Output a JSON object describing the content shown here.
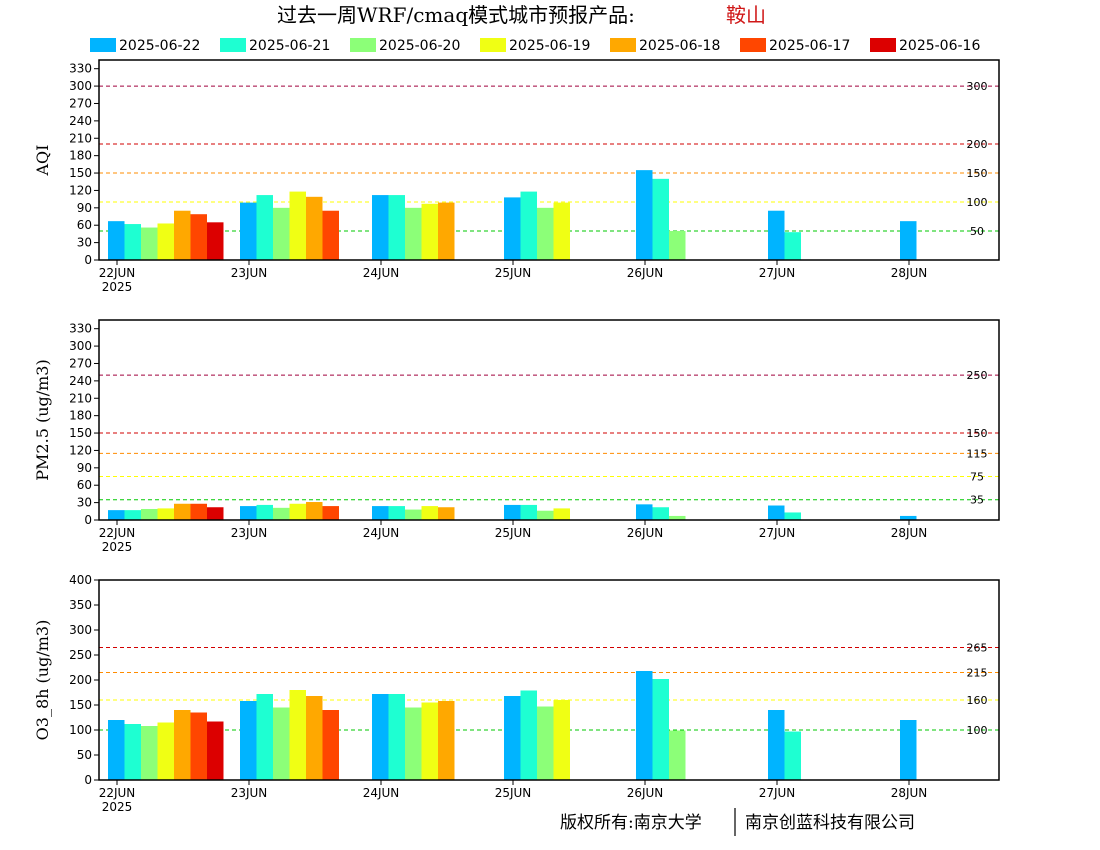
{
  "title": {
    "main": "过去一周WRF/cmaq模式城市预报产品:",
    "city": "鞍山",
    "city_color": "#d01818"
  },
  "legend": [
    {
      "label": "2025-06-22",
      "color": "#00b4ff"
    },
    {
      "label": "2025-06-21",
      "color": "#1effd2"
    },
    {
      "label": "2025-06-20",
      "color": "#8cff78"
    },
    {
      "label": "2025-06-19",
      "color": "#f0ff14"
    },
    {
      "label": "2025-06-18",
      "color": "#ffa800"
    },
    {
      "label": "2025-06-17",
      "color": "#ff4600"
    },
    {
      "label": "2025-06-16",
      "color": "#dc0000"
    }
  ],
  "chart_data": [
    {
      "type": "bar",
      "ylabel": "AQI",
      "ylim": [
        0,
        345
      ],
      "yticks": [
        0,
        30,
        60,
        90,
        120,
        150,
        180,
        210,
        240,
        270,
        300,
        330
      ],
      "categories": [
        "22JUN",
        "23JUN",
        "24JUN",
        "25JUN",
        "26JUN",
        "27JUN",
        "28JUN"
      ],
      "first_category_sublabel": "2025",
      "reference_lines": [
        {
          "value": 300,
          "label": "300",
          "color": "#a0003c"
        },
        {
          "value": 200,
          "label": "200",
          "color": "#d20000"
        },
        {
          "value": 150,
          "label": "150",
          "color": "#ff8c00"
        },
        {
          "value": 100,
          "label": "100",
          "color": "#ffff00"
        },
        {
          "value": 50,
          "label": "50",
          "color": "#00c800"
        }
      ],
      "series": [
        {
          "name": "2025-06-22",
          "values": [
            67,
            99,
            112,
            108,
            155,
            85,
            67
          ]
        },
        {
          "name": "2025-06-21",
          "values": [
            62,
            112,
            112,
            118,
            140,
            48,
            null
          ]
        },
        {
          "name": "2025-06-20",
          "values": [
            56,
            90,
            90,
            90,
            50,
            null,
            null
          ]
        },
        {
          "name": "2025-06-19",
          "values": [
            63,
            118,
            97,
            99,
            null,
            null,
            null
          ]
        },
        {
          "name": "2025-06-18",
          "values": [
            85,
            109,
            99,
            null,
            null,
            null,
            null
          ]
        },
        {
          "name": "2025-06-17",
          "values": [
            79,
            85,
            null,
            null,
            null,
            null,
            null
          ]
        },
        {
          "name": "2025-06-16",
          "values": [
            65,
            null,
            null,
            null,
            null,
            null,
            null
          ]
        }
      ]
    },
    {
      "type": "bar",
      "ylabel": "PM2.5 (ug/m3)",
      "ylim": [
        0,
        345
      ],
      "yticks": [
        0,
        30,
        60,
        90,
        120,
        150,
        180,
        210,
        240,
        270,
        300,
        330
      ],
      "categories": [
        "22JUN",
        "23JUN",
        "24JUN",
        "25JUN",
        "26JUN",
        "27JUN",
        "28JUN"
      ],
      "first_category_sublabel": "2025",
      "reference_lines": [
        {
          "value": 250,
          "label": "250",
          "color": "#a0003c"
        },
        {
          "value": 150,
          "label": "150",
          "color": "#d20000"
        },
        {
          "value": 115,
          "label": "115",
          "color": "#ff8c00"
        },
        {
          "value": 75,
          "label": "75",
          "color": "#ffff00"
        },
        {
          "value": 35,
          "label": "35",
          "color": "#00c800"
        }
      ],
      "series": [
        {
          "name": "2025-06-22",
          "values": [
            17,
            24,
            24,
            26,
            27,
            25,
            7
          ]
        },
        {
          "name": "2025-06-21",
          "values": [
            17,
            26,
            24,
            26,
            22,
            13,
            null
          ]
        },
        {
          "name": "2025-06-20",
          "values": [
            19,
            21,
            18,
            16,
            7,
            null,
            null
          ]
        },
        {
          "name": "2025-06-19",
          "values": [
            20,
            28,
            24,
            20,
            null,
            null,
            null
          ]
        },
        {
          "name": "2025-06-18",
          "values": [
            28,
            31,
            22,
            null,
            null,
            null,
            null
          ]
        },
        {
          "name": "2025-06-17",
          "values": [
            28,
            24,
            null,
            null,
            null,
            null,
            null
          ]
        },
        {
          "name": "2025-06-16",
          "values": [
            22,
            null,
            null,
            null,
            null,
            null,
            null
          ]
        }
      ]
    },
    {
      "type": "bar",
      "ylabel": "O3_8h (ug/m3)",
      "ylim": [
        0,
        400
      ],
      "yticks": [
        0,
        50,
        100,
        150,
        200,
        250,
        300,
        350,
        400
      ],
      "categories": [
        "22JUN",
        "23JUN",
        "24JUN",
        "25JUN",
        "26JUN",
        "27JUN",
        "28JUN"
      ],
      "first_category_sublabel": "2025",
      "reference_lines": [
        {
          "value": 265,
          "label": "265",
          "color": "#d20000"
        },
        {
          "value": 215,
          "label": "215",
          "color": "#ff8c00"
        },
        {
          "value": 160,
          "label": "160",
          "color": "#ffff00"
        },
        {
          "value": 100,
          "label": "100",
          "color": "#00c800"
        }
      ],
      "series": [
        {
          "name": "2025-06-22",
          "values": [
            120,
            158,
            172,
            168,
            218,
            140,
            120
          ]
        },
        {
          "name": "2025-06-21",
          "values": [
            112,
            172,
            172,
            179,
            202,
            97,
            null
          ]
        },
        {
          "name": "2025-06-20",
          "values": [
            108,
            145,
            145,
            147,
            99,
            null,
            null
          ]
        },
        {
          "name": "2025-06-19",
          "values": [
            115,
            180,
            155,
            160,
            null,
            null,
            null
          ]
        },
        {
          "name": "2025-06-18",
          "values": [
            140,
            168,
            158,
            null,
            null,
            null,
            null
          ]
        },
        {
          "name": "2025-06-17",
          "values": [
            135,
            140,
            null,
            null,
            null,
            null,
            null
          ]
        },
        {
          "name": "2025-06-16",
          "values": [
            117,
            null,
            null,
            null,
            null,
            null,
            null
          ]
        }
      ]
    }
  ],
  "footer": {
    "left": "版权所有:南京大学",
    "right": "南京创蓝科技有限公司"
  }
}
